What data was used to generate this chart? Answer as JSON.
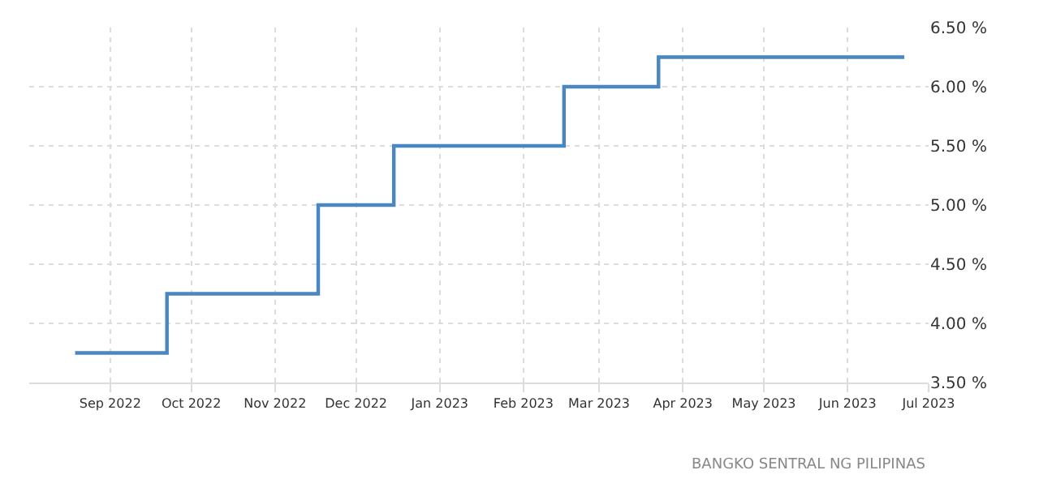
{
  "chart_data": {
    "type": "step",
    "x": [
      "2022-08-19",
      "2022-09-22",
      "2022-11-17",
      "2022-12-15",
      "2023-02-16",
      "2023-03-23",
      "2023-06-22"
    ],
    "series": [
      {
        "color": "#4a86c0",
        "values": [
          3.75,
          4.25,
          5.0,
          5.5,
          6.0,
          6.25,
          6.25
        ]
      }
    ],
    "xlim": [
      "2022-08-02",
      "2023-07-01"
    ],
    "xticks": [
      {
        "value": "2022-09-01",
        "label": "Sep 2022"
      },
      {
        "value": "2022-10-01",
        "label": "Oct 2022"
      },
      {
        "value": "2022-11-01",
        "label": "Nov 2022"
      },
      {
        "value": "2022-12-01",
        "label": "Dec 2022"
      },
      {
        "value": "2023-01-01",
        "label": "Jan 2023"
      },
      {
        "value": "2023-02-01",
        "label": "Feb 2023"
      },
      {
        "value": "2023-03-01",
        "label": "Mar 2023"
      },
      {
        "value": "2023-04-01",
        "label": "Apr 2023"
      },
      {
        "value": "2023-05-01",
        "label": "May 2023"
      },
      {
        "value": "2023-06-01",
        "label": "Jun 2023"
      },
      {
        "value": "2023-07-01",
        "label": "Jul 2023"
      }
    ],
    "ylim": [
      3.5,
      6.5
    ],
    "yticks": [
      {
        "value": 3.5,
        "label": "3.50 %"
      },
      {
        "value": 4.0,
        "label": "4.00 %"
      },
      {
        "value": 4.5,
        "label": "4.50 %"
      },
      {
        "value": 5.0,
        "label": "5.00 %"
      },
      {
        "value": 5.5,
        "label": "5.50 %"
      },
      {
        "value": 6.0,
        "label": "6.00 %"
      },
      {
        "value": 6.5,
        "label": "6.50 %"
      }
    ],
    "grid": true,
    "legend": false,
    "line_style": "solid",
    "marker": "none",
    "annotations": [
      "BANGKO SENTRAL NG PILIPINAS"
    ]
  }
}
